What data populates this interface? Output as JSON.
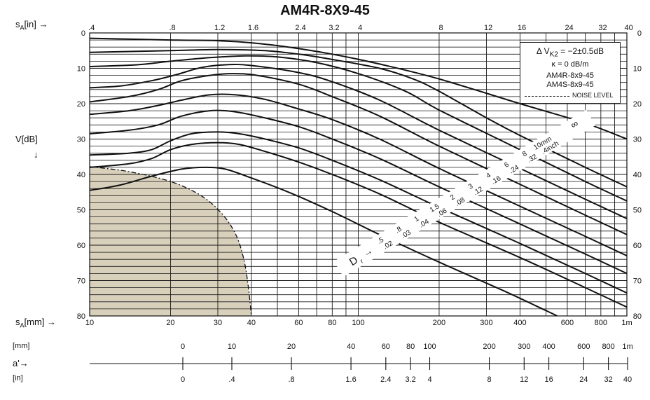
{
  "chart_data": {
    "type": "line",
    "title": "AM4R-8X9-45",
    "top_axis": {
      "label_prefix": "s",
      "label_sub": "A",
      "label_suffix": "[in]",
      "arrow": "→",
      "ticks": [
        {
          "label": ".4",
          "value": 0.4
        },
        {
          "label": ".8",
          "value": 0.8
        },
        {
          "label": "1.2",
          "value": 1.2
        },
        {
          "label": "1.6",
          "value": 1.6
        },
        {
          "label": "2.4",
          "value": 2.4
        },
        {
          "label": "3.2",
          "value": 3.2
        },
        {
          "label": "4",
          "value": 4
        },
        {
          "label": "8",
          "value": 8
        },
        {
          "label": "12",
          "value": 12
        },
        {
          "label": "16",
          "value": 16
        },
        {
          "label": "24",
          "value": 24
        },
        {
          "label": "32",
          "value": 32
        },
        {
          "label": "40",
          "value": 40
        }
      ]
    },
    "bottom_axis": {
      "label_prefix": "s",
      "label_sub": "A",
      "label_suffix": "[mm]",
      "arrow": "→",
      "scale": "log",
      "range_mm": [
        10,
        1000
      ],
      "ticks": [
        {
          "label": "10",
          "value": 10
        },
        {
          "label": "20",
          "value": 20
        },
        {
          "label": "30",
          "value": 30
        },
        {
          "label": "40",
          "value": 40
        },
        {
          "label": "60",
          "value": 60
        },
        {
          "label": "80",
          "value": 80
        },
        {
          "label": "100",
          "value": 100
        },
        {
          "label": "200",
          "value": 200
        },
        {
          "label": "300",
          "value": 300
        },
        {
          "label": "400",
          "value": 400
        },
        {
          "label": "600",
          "value": 600
        },
        {
          "label": "800",
          "value": 800
        },
        {
          "label": "1m",
          "value": 1000
        }
      ]
    },
    "y_axis": {
      "label": "V[dB]",
      "arrow": "↓",
      "range": [
        0,
        80
      ],
      "inverted": true,
      "ticks": [
        "0",
        "10",
        "20",
        "30",
        "40",
        "50",
        "60",
        "70",
        "80"
      ],
      "right_ticks": [
        "0",
        "10",
        "20",
        "30",
        "40",
        "50",
        "60",
        "70",
        "80"
      ]
    },
    "grid": true,
    "legend": {
      "placement": "top-right",
      "line1": "Δ V",
      "line1_sub": "K2",
      "line1_rest": " = −2±0.5dB",
      "line2": "κ = 0 dB/m",
      "line3": "AM4R-8x9-45",
      "line4": "AM4S-8x9-45",
      "noise": "NOISE LEVEL"
    },
    "series_labels": {
      "prefix": "D",
      "prefix_sub": "r",
      "arrow": "→",
      "mm_label": "10mm",
      "in_label": ".4inch",
      "mm": [
        ".5",
        ".8",
        "1",
        "1.5",
        "2",
        "3",
        "4",
        "6",
        "8",
        "10mm"
      ],
      "inch": [
        ".02",
        ".03",
        ".04",
        ".06",
        ".08",
        ".12",
        ".16",
        ".24",
        ".32",
        ".4inch"
      ],
      "infinity": "∞"
    },
    "series": [
      {
        "values": [
          [
            10,
            44.5
          ],
          [
            13,
            43
          ],
          [
            17,
            40.5
          ],
          [
            22,
            38.5
          ],
          [
            27,
            38
          ],
          [
            32,
            38.5
          ],
          [
            40,
            41
          ],
          [
            55,
            45
          ],
          [
            80,
            50.5
          ],
          [
            120,
            57
          ],
          [
            200,
            64.8
          ],
          [
            350,
            73
          ],
          [
            500,
            78.5
          ],
          [
            550,
            80
          ]
        ]
      },
      {
        "values": [
          [
            10,
            38
          ],
          [
            14,
            37
          ],
          [
            17,
            35.5
          ],
          [
            20,
            33
          ],
          [
            24,
            31.5
          ],
          [
            30,
            31
          ],
          [
            36,
            31.5
          ],
          [
            45,
            33.5
          ],
          [
            60,
            36.5
          ],
          [
            80,
            40
          ],
          [
            120,
            45.5
          ],
          [
            200,
            53.5
          ],
          [
            400,
            63.5
          ],
          [
            700,
            72
          ],
          [
            1000,
            77.5
          ]
        ]
      },
      {
        "values": [
          [
            10,
            34.5
          ],
          [
            14,
            34
          ],
          [
            17,
            33
          ],
          [
            20,
            30.5
          ],
          [
            24,
            28.5
          ],
          [
            30,
            28
          ],
          [
            36,
            28.5
          ],
          [
            45,
            30
          ],
          [
            60,
            32.5
          ],
          [
            80,
            36
          ],
          [
            120,
            41.5
          ],
          [
            200,
            49.3
          ],
          [
            400,
            59.5
          ],
          [
            700,
            68
          ],
          [
            1000,
            73.5
          ]
        ]
      },
      {
        "values": [
          [
            10,
            28.5
          ],
          [
            14,
            27.5
          ],
          [
            18,
            26
          ],
          [
            22,
            23.5
          ],
          [
            28,
            22
          ],
          [
            34,
            22.2
          ],
          [
            42,
            23.5
          ],
          [
            60,
            26.5
          ],
          [
            80,
            30
          ],
          [
            120,
            35.5
          ],
          [
            200,
            43.5
          ],
          [
            400,
            54
          ],
          [
            700,
            62.5
          ],
          [
            1000,
            68
          ]
        ]
      },
      {
        "values": [
          [
            10,
            23
          ],
          [
            14,
            22
          ],
          [
            18,
            20.5
          ],
          [
            22,
            19
          ],
          [
            28,
            17.5
          ],
          [
            35,
            17.5
          ],
          [
            45,
            18.8
          ],
          [
            60,
            21.5
          ],
          [
            80,
            24.5
          ],
          [
            120,
            30
          ],
          [
            200,
            38.3
          ],
          [
            400,
            49
          ],
          [
            700,
            57.5
          ],
          [
            1000,
            63
          ]
        ]
      },
      {
        "values": [
          [
            10,
            19.5
          ],
          [
            14,
            18
          ],
          [
            18,
            16
          ],
          [
            22,
            13.5
          ],
          [
            28,
            12
          ],
          [
            34,
            11.5
          ],
          [
            42,
            12
          ],
          [
            60,
            14.5
          ],
          [
            80,
            18
          ],
          [
            120,
            23.5
          ],
          [
            200,
            32
          ],
          [
            400,
            42.8
          ],
          [
            700,
            51.5
          ],
          [
            1000,
            57
          ]
        ]
      },
      {
        "values": [
          [
            10,
            15.5
          ],
          [
            13,
            15
          ],
          [
            17,
            13.5
          ],
          [
            21,
            11.8
          ],
          [
            26,
            9.8
          ],
          [
            32,
            9
          ],
          [
            40,
            9.2
          ],
          [
            60,
            11.2
          ],
          [
            80,
            13.8
          ],
          [
            120,
            19
          ],
          [
            200,
            27.5
          ],
          [
            400,
            38.3
          ],
          [
            700,
            47
          ],
          [
            1000,
            52.5
          ]
        ]
      },
      {
        "values": [
          [
            10,
            9.5
          ],
          [
            15,
            9
          ],
          [
            20,
            8
          ],
          [
            28,
            7
          ],
          [
            38,
            6.5
          ],
          [
            50,
            6.8
          ],
          [
            70,
            8.4
          ],
          [
            100,
            11.5
          ],
          [
            150,
            16.5
          ],
          [
            200,
            21.8
          ],
          [
            400,
            33
          ],
          [
            700,
            42
          ],
          [
            1000,
            47.5
          ]
        ]
      },
      {
        "values": [
          [
            10,
            5.5
          ],
          [
            20,
            5
          ],
          [
            30,
            4.7
          ],
          [
            45,
            5
          ],
          [
            60,
            6
          ],
          [
            80,
            7.5
          ],
          [
            120,
            10
          ],
          [
            160,
            13
          ],
          [
            200,
            16.5
          ],
          [
            300,
            24
          ],
          [
            400,
            29
          ],
          [
            700,
            38
          ],
          [
            1000,
            43.5
          ]
        ]
      },
      {
        "values": [
          [
            10,
            1.5
          ],
          [
            20,
            2
          ],
          [
            30,
            2.2
          ],
          [
            40,
            2.8
          ],
          [
            55,
            4
          ],
          [
            80,
            6
          ],
          [
            120,
            8.8
          ],
          [
            200,
            13
          ],
          [
            400,
            20
          ],
          [
            700,
            25.5
          ],
          [
            1000,
            30
          ]
        ]
      }
    ],
    "noise_level": {
      "values": [
        [
          10,
          37.8
        ],
        [
          14,
          39.2
        ],
        [
          20,
          42
        ],
        [
          26,
          46
        ],
        [
          31,
          51
        ],
        [
          35,
          57
        ],
        [
          37.5,
          64
        ],
        [
          39,
          72
        ],
        [
          40,
          80
        ]
      ]
    },
    "a_axis": {
      "label": "a'",
      "arrow": "→",
      "mm_label": "[mm]",
      "in_label": "[in]",
      "mm_ticks": [
        {
          "label": "0",
          "value": 0
        },
        {
          "label": "10",
          "value": 10
        },
        {
          "label": "20",
          "value": 20
        },
        {
          "label": "40",
          "value": 40
        },
        {
          "label": "60",
          "value": 60
        },
        {
          "label": "80",
          "value": 80
        },
        {
          "label": "100",
          "value": 100
        },
        {
          "label": "200",
          "value": 200
        },
        {
          "label": "300",
          "value": 300
        },
        {
          "label": "400",
          "value": 400
        },
        {
          "label": "600",
          "value": 600
        },
        {
          "label": "800",
          "value": 800
        },
        {
          "label": "1m",
          "value": 1000
        }
      ],
      "in_ticks": [
        {
          "label": "0",
          "value": 0
        },
        {
          "label": ".4",
          "value": 0.4
        },
        {
          "label": ".8",
          "value": 0.8
        },
        {
          "label": "1.6",
          "value": 1.6
        },
        {
          "label": "2.4",
          "value": 2.4
        },
        {
          "label": "3.2",
          "value": 3.2
        },
        {
          "label": "4",
          "value": 4
        },
        {
          "label": "8",
          "value": 8
        },
        {
          "label": "12",
          "value": 12
        },
        {
          "label": "16",
          "value": 16
        },
        {
          "label": "24",
          "value": 24
        },
        {
          "label": "32",
          "value": 32
        },
        {
          "label": "40",
          "value": 40
        }
      ]
    },
    "colors": {
      "curve": "#111111",
      "grid": "#1a1a1a",
      "noise_fill": "#d9d0bc",
      "label_band": "#ffffff"
    }
  }
}
